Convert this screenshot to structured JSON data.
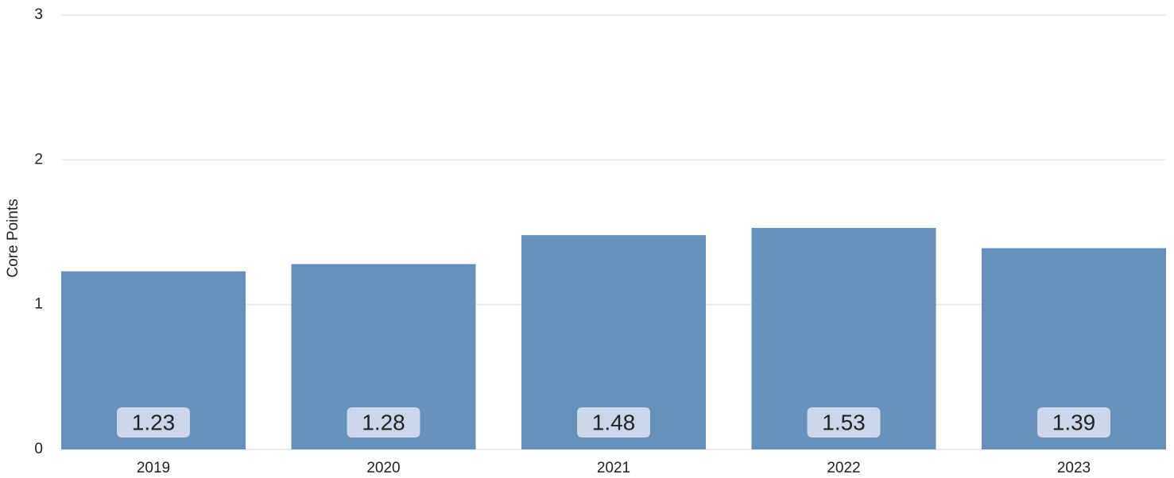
{
  "chart_data": {
    "type": "bar",
    "y_label": "Core Points",
    "categories": [
      "2019",
      "2020",
      "2021",
      "2022",
      "2023"
    ],
    "values": [
      1.23,
      1.28,
      1.48,
      1.53,
      1.39
    ],
    "color": "#6691bb",
    "ylim": [
      0,
      3
    ],
    "yticks": [
      0,
      1,
      2,
      3
    ],
    "grid": true
  }
}
